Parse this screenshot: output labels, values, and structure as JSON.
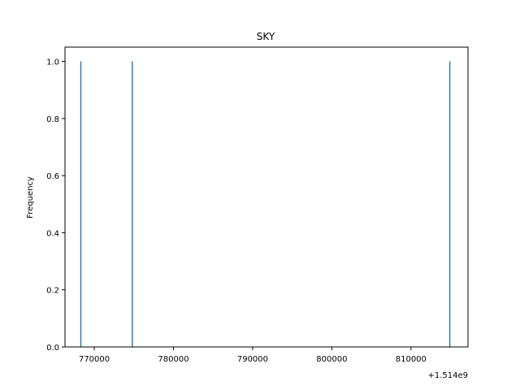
{
  "chart_data": {
    "type": "bar",
    "title": "SKY",
    "xlabel": "",
    "ylabel": "Frequency",
    "x_offset_label": "+1.514e9",
    "xlim": [
      766300,
      817200
    ],
    "ylim": [
      0,
      1.05
    ],
    "x_ticks": [
      770000,
      780000,
      790000,
      800000,
      810000
    ],
    "x_tick_labels": [
      "770000",
      "780000",
      "790000",
      "800000",
      "810000"
    ],
    "y_ticks": [
      0.0,
      0.2,
      0.4,
      0.6,
      0.8,
      1.0
    ],
    "y_tick_labels": [
      "0.0",
      "0.2",
      "0.4",
      "0.6",
      "0.8",
      "1.0"
    ],
    "bars": [
      {
        "x": 768300,
        "value": 1
      },
      {
        "x": 774800,
        "value": 1
      },
      {
        "x": 814900,
        "value": 1
      }
    ],
    "bar_color": "#1f77b4",
    "grid": false
  }
}
